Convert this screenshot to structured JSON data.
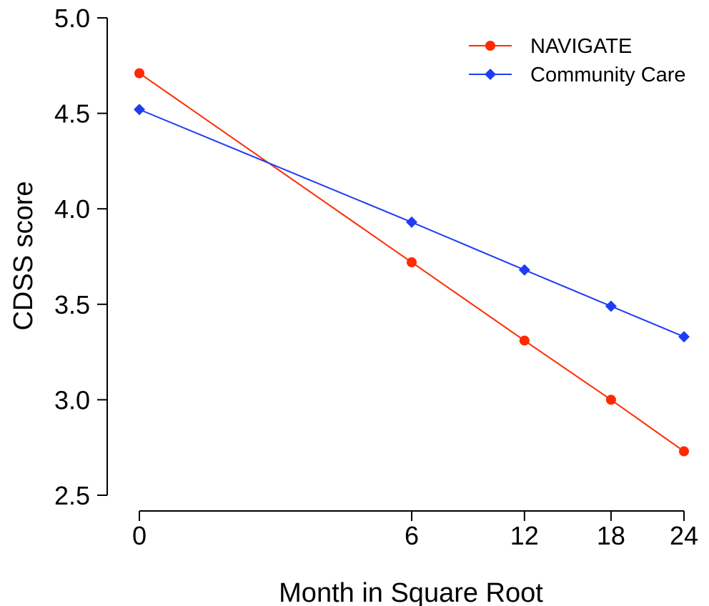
{
  "chart_data": {
    "type": "line",
    "xlabel": "Month in Square Root",
    "ylabel": "CDSS score",
    "x": [
      0,
      6,
      12,
      18,
      24
    ],
    "x_ticks": [
      0,
      6,
      12,
      18,
      24
    ],
    "x_scale": "sqrt",
    "ylim": [
      2.5,
      5.0
    ],
    "y_ticks": [
      "2.5",
      "3.0",
      "3.5",
      "4.0",
      "4.5",
      "5.0"
    ],
    "grid": false,
    "legend_position": "top-right",
    "series": [
      {
        "name": "NAVIGATE",
        "color": "#ff2a00",
        "marker": "circle",
        "values": [
          4.71,
          3.72,
          3.31,
          3.0,
          2.73
        ]
      },
      {
        "name": "Community Care",
        "color": "#1f3cf5",
        "marker": "diamond",
        "values": [
          4.52,
          3.93,
          3.68,
          3.49,
          3.33
        ]
      }
    ]
  }
}
